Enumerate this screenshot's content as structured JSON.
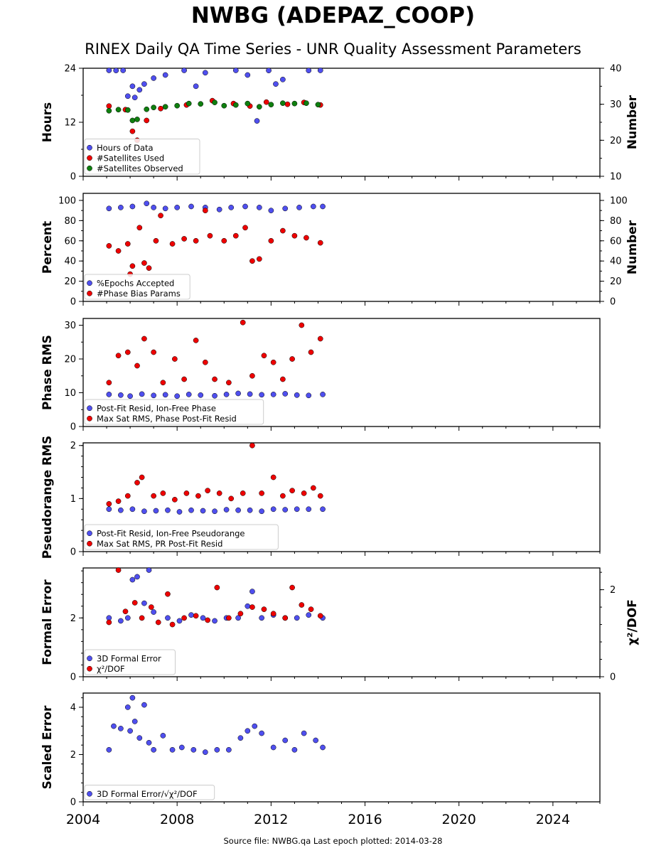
{
  "title": "NWBG (ADEPAZ_COOP)",
  "subtitle": "RINEX Daily QA Time Series - UNR Quality Assessment Parameters",
  "footer": "Source file: NWBG.qa Last epoch plotted: 2014-03-28",
  "colors": {
    "blue": "#4f4fef",
    "red": "#ee0000",
    "green": "#0f7f0f",
    "edge": "#000000"
  },
  "chart_data": [
    {
      "type": "scatter",
      "ylabel": "Hours",
      "y2label": "Number",
      "ylim": [
        0,
        24
      ],
      "y2lim": [
        10,
        40
      ],
      "yticks": [
        0,
        12,
        24
      ],
      "y2ticks": [
        10,
        20,
        30,
        40
      ],
      "xlim": [
        2004,
        2026
      ],
      "xticks": [
        2004,
        2008,
        2012,
        2016,
        2020,
        2024
      ],
      "legend_position": "lower-left",
      "series": [
        {
          "name": "Hours of Data",
          "color": "blue",
          "axis": "left",
          "x": [
            2005.1,
            2005.4,
            2005.7,
            2005.9,
            2006.1,
            2006.2,
            2006.4,
            2006.6,
            2007.0,
            2007.5,
            2008.3,
            2008.8,
            2009.2,
            2010.5,
            2011.0,
            2011.4,
            2011.9,
            2012.2,
            2012.5,
            2013.6,
            2014.1
          ],
          "y": [
            24.0,
            23.5,
            23.8,
            17.8,
            20.0,
            17.5,
            19.2,
            20.5,
            21.8,
            22.5,
            23.6,
            20.0,
            23.0,
            23.7,
            22.5,
            12.3,
            23.5,
            20.5,
            21.5,
            23.5,
            24.0
          ]
        },
        {
          "name": "#Satellites Used",
          "color": "red",
          "axis": "right",
          "x": [
            2005.1,
            2005.8,
            2006.1,
            2006.3,
            2006.7,
            2007.3,
            2008.4,
            2009.5,
            2010.4,
            2011.1,
            2011.8,
            2012.7,
            2013.4,
            2014.1
          ],
          "y": [
            29.5,
            28.5,
            22.5,
            20.0,
            25.5,
            28.8,
            29.8,
            31.0,
            30.2,
            29.5,
            30.6,
            30.0,
            30.5,
            29.8
          ]
        },
        {
          "name": "#Satellites Observed",
          "color": "green",
          "axis": "right",
          "x": [
            2005.1,
            2005.5,
            2005.9,
            2006.1,
            2006.3,
            2006.7,
            2007.0,
            2007.5,
            2008.0,
            2008.5,
            2009.0,
            2009.6,
            2010.0,
            2010.5,
            2011.0,
            2011.5,
            2012.0,
            2012.5,
            2013.0,
            2013.5,
            2014.0
          ],
          "y": [
            28.2,
            28.5,
            28.4,
            25.5,
            25.8,
            28.6,
            29.1,
            29.3,
            29.6,
            30.2,
            30.1,
            30.5,
            29.6,
            29.8,
            30.2,
            29.3,
            29.9,
            30.3,
            30.2,
            30.3,
            29.9
          ]
        }
      ]
    },
    {
      "type": "scatter",
      "ylabel": "Percent",
      "y2label": "Number",
      "ylim": [
        0,
        107
      ],
      "y2lim": [
        0,
        107
      ],
      "yticks": [
        0,
        20,
        40,
        60,
        80,
        100
      ],
      "y2ticks": [
        0,
        20,
        40,
        60,
        80,
        100
      ],
      "xlim": [
        2004,
        2026
      ],
      "xticks": [
        2004,
        2008,
        2012,
        2016,
        2020,
        2024
      ],
      "legend_position": "lower-left",
      "series": [
        {
          "name": "%Epochs Accepted",
          "color": "blue",
          "axis": "left",
          "x": [
            2005.1,
            2005.6,
            2006.1,
            2006.7,
            2007.0,
            2007.5,
            2008.0,
            2008.6,
            2009.2,
            2009.8,
            2010.3,
            2010.9,
            2011.5,
            2012.0,
            2012.6,
            2013.2,
            2013.8,
            2014.2
          ],
          "y": [
            92,
            93,
            94,
            97,
            93,
            92,
            93,
            94,
            93,
            91,
            93,
            94,
            93,
            90,
            92,
            93,
            94,
            94
          ]
        },
        {
          "name": "#Phase Bias Params",
          "color": "red",
          "axis": "right",
          "x": [
            2005.1,
            2005.5,
            2005.9,
            2006.0,
            2006.1,
            2006.4,
            2006.6,
            2006.8,
            2007.1,
            2007.3,
            2007.8,
            2008.3,
            2008.8,
            2009.2,
            2009.4,
            2010.0,
            2010.5,
            2010.9,
            2011.2,
            2011.5,
            2012.0,
            2012.5,
            2013.0,
            2013.5,
            2014.1
          ],
          "y": [
            55,
            50,
            57,
            27,
            35,
            73,
            38,
            33,
            60,
            85,
            57,
            62,
            60,
            90,
            65,
            60,
            65,
            73,
            40,
            42,
            60,
            70,
            65,
            63,
            58
          ]
        }
      ]
    },
    {
      "type": "scatter",
      "ylabel": "Phase RMS",
      "ylim": [
        0,
        32
      ],
      "yticks": [
        0,
        10,
        20,
        30
      ],
      "xlim": [
        2004,
        2026
      ],
      "xticks": [
        2004,
        2008,
        2012,
        2016,
        2020,
        2024
      ],
      "legend_position": "lower-left",
      "series": [
        {
          "name": "Post-Fit Resid, Ion-Free Phase",
          "color": "blue",
          "x": [
            2005.1,
            2005.6,
            2006.0,
            2006.5,
            2007.0,
            2007.5,
            2008.0,
            2008.5,
            2009.0,
            2009.6,
            2010.1,
            2010.6,
            2011.1,
            2011.6,
            2012.1,
            2012.6,
            2013.1,
            2013.6,
            2014.2
          ],
          "y": [
            9.5,
            9.3,
            9.0,
            9.6,
            9.2,
            9.4,
            9.0,
            9.5,
            9.3,
            9.1,
            9.5,
            9.8,
            9.6,
            9.4,
            9.5,
            9.7,
            9.3,
            9.2,
            9.5
          ]
        },
        {
          "name": "Max Sat RMS, Phase Post-Fit Resid",
          "color": "red",
          "x": [
            2005.1,
            2005.5,
            2005.9,
            2006.3,
            2006.6,
            2007.0,
            2007.4,
            2007.9,
            2008.3,
            2008.8,
            2009.2,
            2009.6,
            2010.2,
            2010.8,
            2011.2,
            2011.7,
            2012.1,
            2012.5,
            2012.9,
            2013.3,
            2013.7,
            2014.1
          ],
          "y": [
            13,
            21,
            22,
            18,
            26,
            22,
            13,
            20,
            14,
            25.5,
            19,
            14,
            13,
            30.8,
            15,
            21,
            19,
            14,
            20,
            30,
            22,
            26
          ]
        }
      ]
    },
    {
      "type": "scatter",
      "ylabel": "Pseudorange RMS",
      "ylim": [
        0,
        2.05
      ],
      "yticks": [
        0,
        1,
        2
      ],
      "xlim": [
        2004,
        2026
      ],
      "xticks": [
        2004,
        2008,
        2012,
        2016,
        2020,
        2024
      ],
      "legend_position": "lower-left",
      "series": [
        {
          "name": "Post-Fit Resid, Ion-Free Pseudorange",
          "color": "blue",
          "x": [
            2005.1,
            2005.6,
            2006.1,
            2006.6,
            2007.1,
            2007.6,
            2008.1,
            2008.6,
            2009.1,
            2009.6,
            2010.1,
            2010.6,
            2011.1,
            2011.6,
            2012.1,
            2012.6,
            2013.1,
            2013.6,
            2014.2
          ],
          "y": [
            0.8,
            0.78,
            0.8,
            0.76,
            0.77,
            0.78,
            0.75,
            0.78,
            0.77,
            0.76,
            0.79,
            0.78,
            0.78,
            0.76,
            0.8,
            0.79,
            0.8,
            0.8,
            0.8
          ]
        },
        {
          "name": "Max Sat RMS, PR Post-Fit Resid",
          "color": "red",
          "x": [
            2005.1,
            2005.5,
            2005.9,
            2006.3,
            2006.5,
            2007.0,
            2007.4,
            2007.9,
            2008.4,
            2008.9,
            2009.3,
            2009.8,
            2010.3,
            2010.8,
            2011.2,
            2011.6,
            2012.1,
            2012.5,
            2012.9,
            2013.4,
            2013.8,
            2014.1
          ],
          "y": [
            0.9,
            0.95,
            1.05,
            1.3,
            1.4,
            1.05,
            1.1,
            0.98,
            1.1,
            1.05,
            1.15,
            1.1,
            1.0,
            1.1,
            2.0,
            1.1,
            1.4,
            1.05,
            1.15,
            1.1,
            1.2,
            1.05
          ]
        }
      ]
    },
    {
      "type": "scatter",
      "ylabel": "Formal Error",
      "y2label": "χ²/DOF",
      "ylim": [
        0,
        3.7
      ],
      "y2lim": [
        0,
        2.5
      ],
      "yticks": [
        0,
        2
      ],
      "y2ticks": [
        0,
        2
      ],
      "xlim": [
        2004,
        2026
      ],
      "xticks": [
        2004,
        2008,
        2012,
        2016,
        2020,
        2024
      ],
      "legend_position": "lower-left",
      "series": [
        {
          "name": "3D Formal Error",
          "color": "blue",
          "axis": "left",
          "x": [
            2005.1,
            2005.6,
            2005.9,
            2006.1,
            2006.3,
            2006.6,
            2006.8,
            2007.0,
            2007.6,
            2008.1,
            2008.6,
            2009.1,
            2009.6,
            2010.1,
            2010.6,
            2011.0,
            2011.2,
            2011.6,
            2012.1,
            2012.6,
            2013.1,
            2013.6,
            2014.2
          ],
          "y": [
            2.0,
            1.9,
            2.0,
            3.3,
            3.4,
            2.5,
            3.7,
            2.2,
            2.0,
            1.9,
            2.1,
            2.0,
            1.9,
            2.0,
            2.0,
            2.4,
            2.9,
            2.0,
            2.1,
            2.0,
            2.0,
            2.1,
            2.0
          ]
        },
        {
          "name": "χ²/DOF",
          "color": "red",
          "axis": "right",
          "x": [
            2005.1,
            2005.5,
            2005.8,
            2006.2,
            2006.5,
            2006.9,
            2007.2,
            2007.6,
            2007.8,
            2008.3,
            2008.8,
            2009.3,
            2009.7,
            2010.2,
            2010.7,
            2011.2,
            2011.7,
            2012.1,
            2012.6,
            2012.9,
            2013.3,
            2013.7,
            2014.1
          ],
          "y": [
            1.25,
            2.45,
            1.5,
            1.7,
            1.35,
            1.6,
            1.25,
            1.9,
            1.2,
            1.35,
            1.4,
            1.3,
            2.05,
            1.35,
            1.45,
            1.6,
            1.55,
            1.45,
            1.35,
            2.05,
            1.65,
            1.55,
            1.4
          ]
        }
      ]
    },
    {
      "type": "scatter",
      "ylabel": "Scaled Error",
      "ylim": [
        0,
        4.6
      ],
      "yticks": [
        0,
        2,
        4
      ],
      "xlim": [
        2004,
        2026
      ],
      "xticks": [
        2004,
        2008,
        2012,
        2016,
        2020,
        2024
      ],
      "legend_position": "lower-left",
      "series": [
        {
          "name": "3D Formal Error/√χ²/DOF",
          "color": "blue",
          "x": [
            2005.1,
            2005.3,
            2005.6,
            2005.9,
            2006.0,
            2006.1,
            2006.2,
            2006.4,
            2006.6,
            2006.8,
            2007.0,
            2007.4,
            2007.8,
            2008.2,
            2008.7,
            2009.2,
            2009.7,
            2010.2,
            2010.7,
            2011.0,
            2011.3,
            2011.6,
            2012.1,
            2012.6,
            2013.0,
            2013.4,
            2013.9,
            2014.2
          ],
          "y": [
            2.2,
            3.2,
            3.1,
            4.0,
            3.0,
            4.4,
            3.4,
            2.7,
            4.1,
            2.5,
            2.2,
            2.8,
            2.2,
            2.3,
            2.2,
            2.1,
            2.2,
            2.2,
            2.7,
            3.0,
            3.2,
            2.9,
            2.3,
            2.6,
            2.2,
            2.9,
            2.6,
            2.3
          ]
        }
      ]
    }
  ]
}
